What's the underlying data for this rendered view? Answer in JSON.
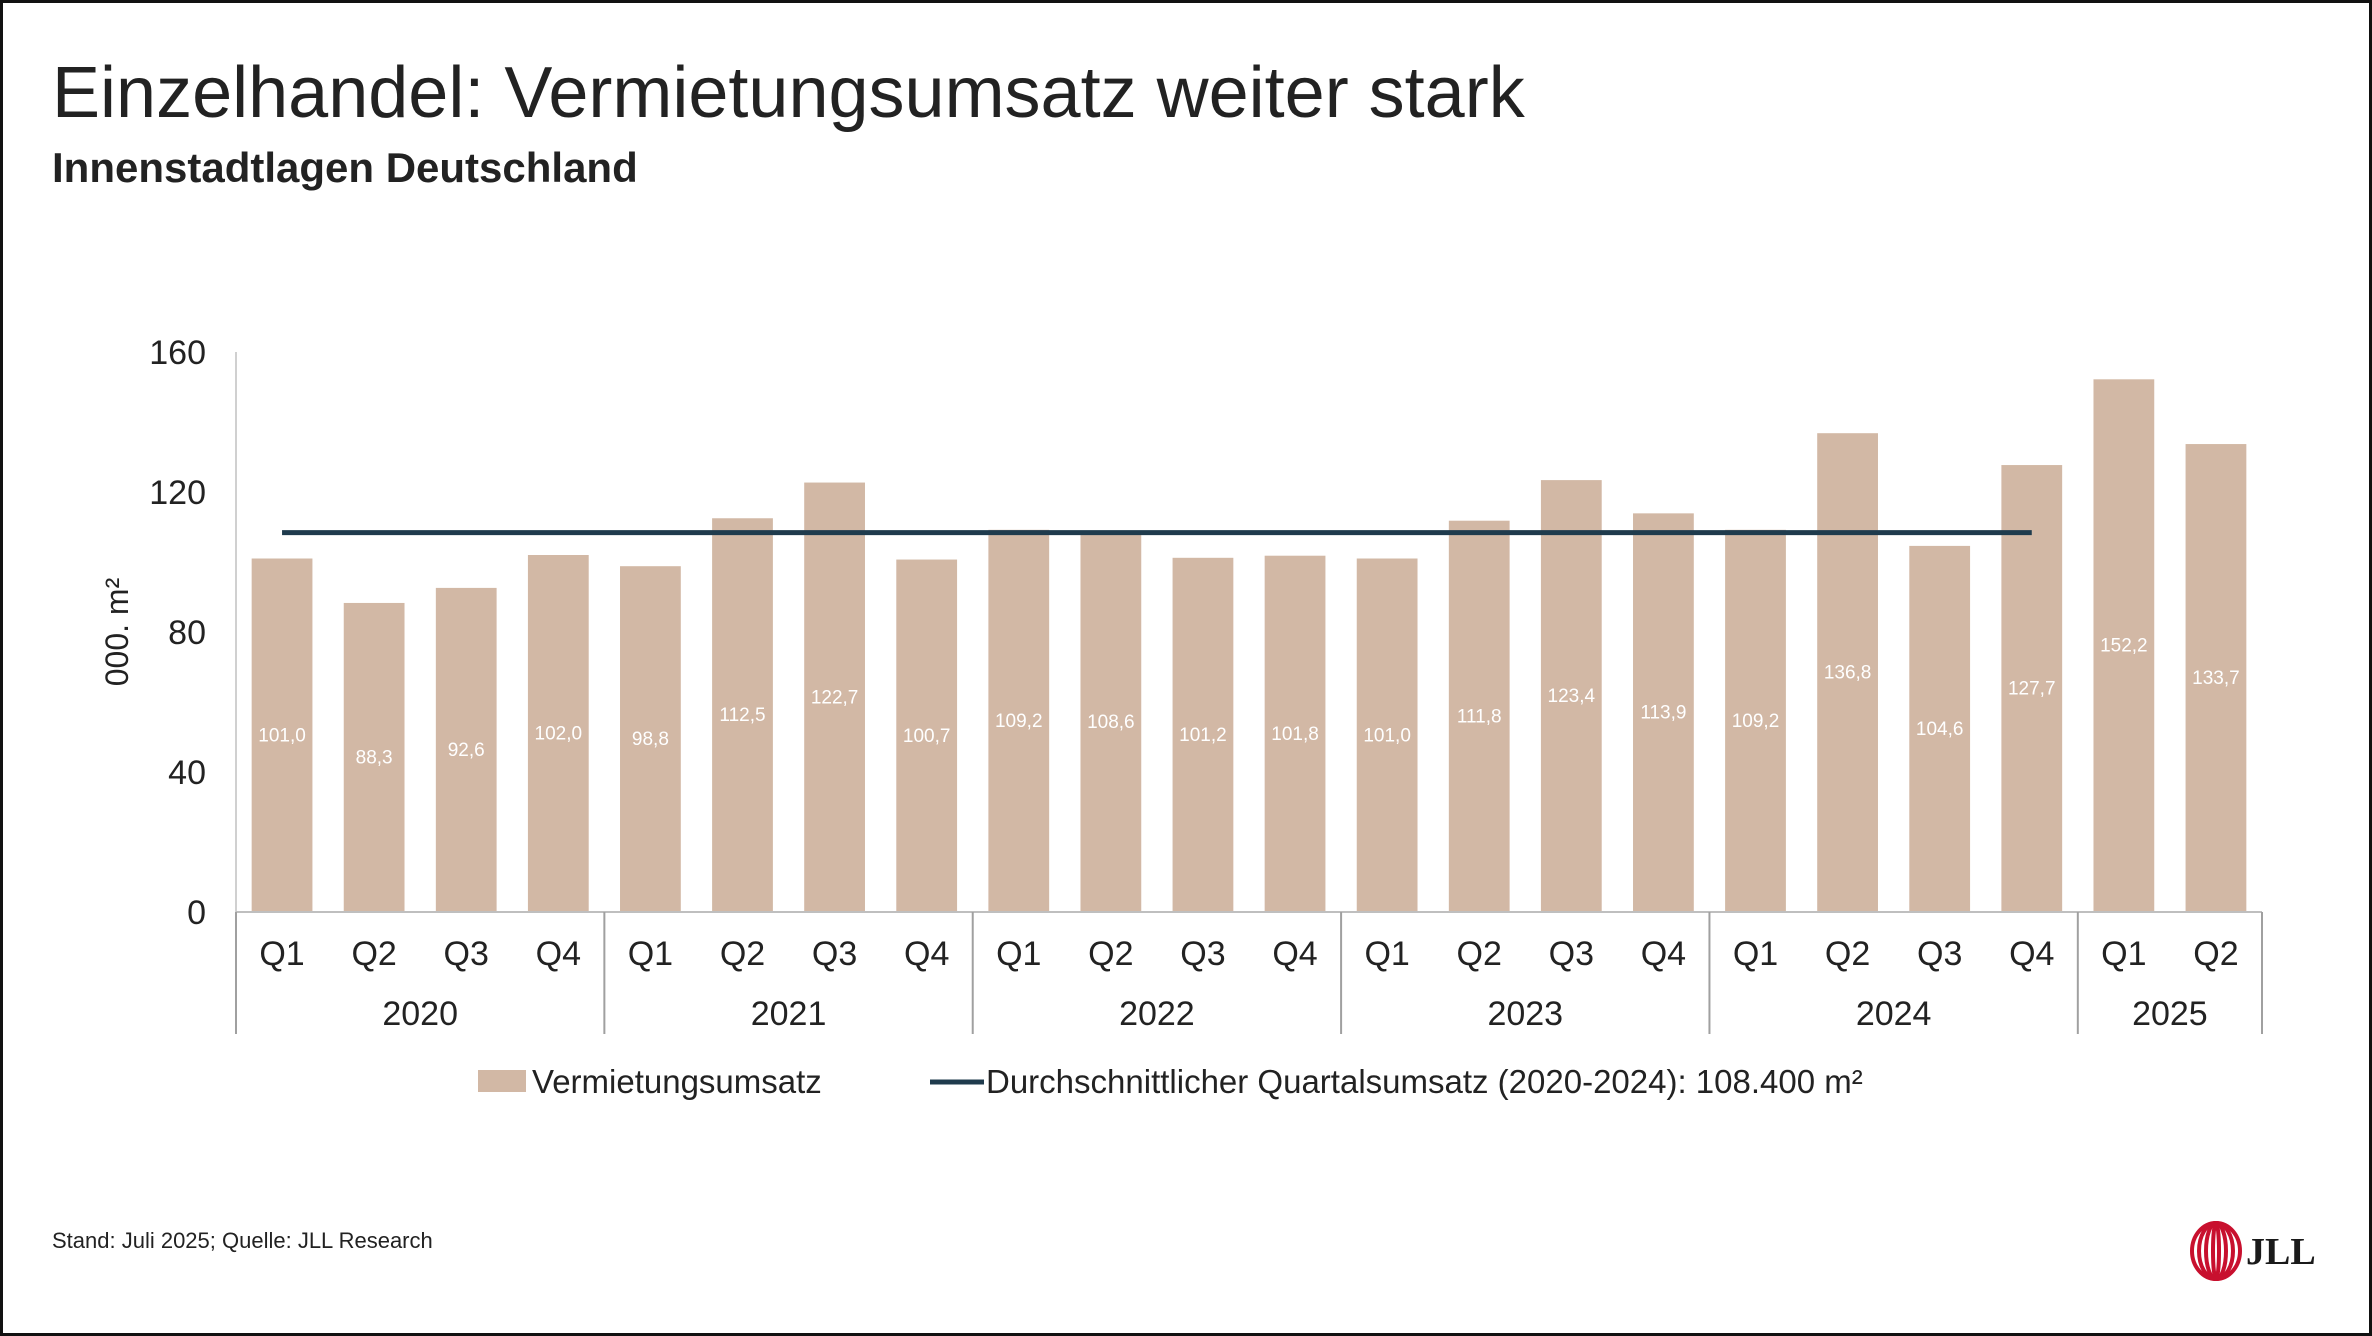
{
  "header": {
    "title": "Einzelhandel: Vermietungsumsatz weiter stark",
    "subtitle": "Innenstadtlagen Deutschland"
  },
  "footer": {
    "source": "Stand: Juli 2025; Quelle: JLL Research",
    "logo_text": "JLL"
  },
  "colors": {
    "bar": "#d2b8a5",
    "line": "#1f3b4d",
    "logo": "#c8102e",
    "bar_label": "#ffffff",
    "text": "#222222"
  },
  "chart_data": {
    "type": "bar",
    "ylabel": "000. m²",
    "ylim": [
      0,
      160
    ],
    "yticks": [
      0,
      40,
      80,
      120,
      160
    ],
    "categories": [
      "Q1",
      "Q2",
      "Q3",
      "Q4",
      "Q1",
      "Q2",
      "Q3",
      "Q4",
      "Q1",
      "Q2",
      "Q3",
      "Q4",
      "Q1",
      "Q2",
      "Q3",
      "Q4",
      "Q1",
      "Q2",
      "Q3",
      "Q4",
      "Q1",
      "Q2"
    ],
    "groups": [
      {
        "label": "2020",
        "count": 4
      },
      {
        "label": "2021",
        "count": 4
      },
      {
        "label": "2022",
        "count": 4
      },
      {
        "label": "2023",
        "count": 4
      },
      {
        "label": "2024",
        "count": 4
      },
      {
        "label": "2025",
        "count": 2
      }
    ],
    "series": [
      {
        "name": "Vermietungsumsatz",
        "type": "bar",
        "values": [
          101.0,
          88.3,
          92.6,
          102.0,
          98.8,
          112.5,
          122.7,
          100.7,
          109.2,
          108.6,
          101.2,
          101.8,
          101.0,
          111.8,
          123.4,
          113.9,
          109.2,
          136.8,
          104.6,
          127.7,
          152.2,
          133.7
        ],
        "labels": [
          "101,0",
          "88,3",
          "92,6",
          "102,0",
          "98,8",
          "112,5",
          "122,7",
          "100,7",
          "109,2",
          "108,6",
          "101,2",
          "101,8",
          "101,0",
          "111,8",
          "123,4",
          "113,9",
          "109,2",
          "136,8",
          "104,6",
          "127,7",
          "152,2",
          "133,7"
        ]
      },
      {
        "name": "Durchschnittlicher Quartalsumsatz (2020-2024): 108.400 m²",
        "type": "line",
        "value": 108.4,
        "span": [
          "2020 Q1",
          "2024 Q4"
        ]
      }
    ],
    "legend_position": "bottom",
    "grid": false
  }
}
